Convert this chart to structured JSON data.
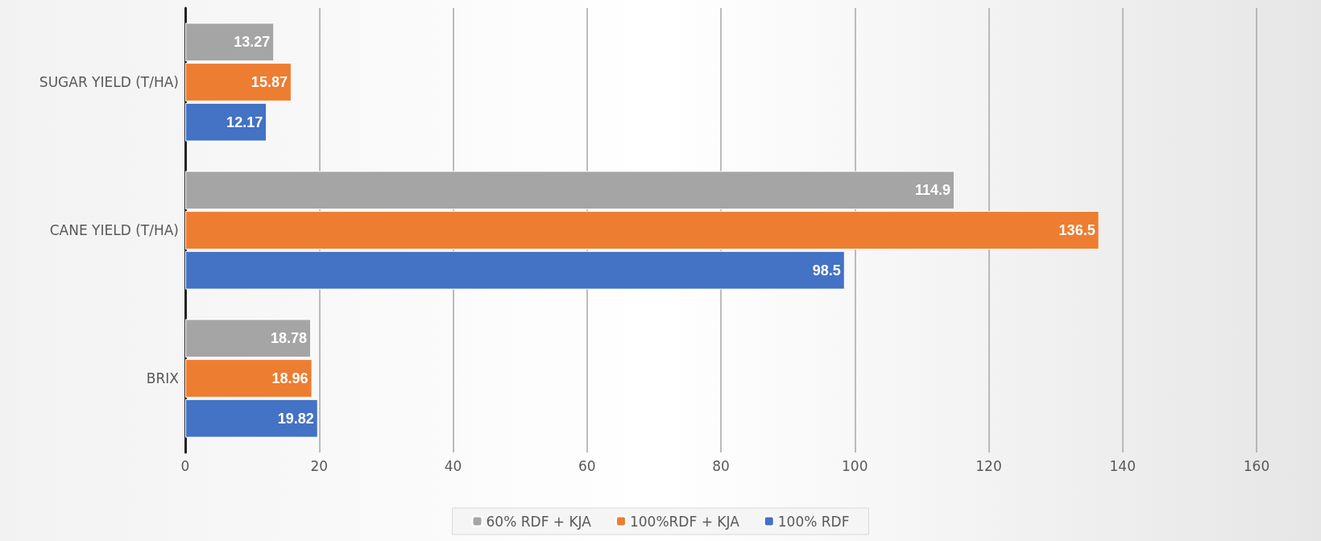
{
  "chart_data": {
    "type": "bar",
    "orientation": "horizontal",
    "categories": [
      "SUGAR YIELD (T/HA)",
      "CANE YIELD (T/HA)",
      "BRIX"
    ],
    "series": [
      {
        "name": "60% RDF + KJA",
        "color": "#a5a5a5",
        "values": [
          13.27,
          114.9,
          18.78
        ]
      },
      {
        "name": "100%RDF + KJA",
        "color": "#ed7d31",
        "values": [
          15.87,
          136.5,
          18.96
        ]
      },
      {
        "name": "100% RDF",
        "color": "#4472c4",
        "values": [
          12.17,
          98.5,
          19.82
        ]
      }
    ],
    "xlim": [
      0,
      160
    ],
    "xticks": [
      0,
      20,
      40,
      60,
      80,
      100,
      120,
      140,
      160
    ],
    "grid": "x",
    "legend": "bottom",
    "data_labels": true
  }
}
